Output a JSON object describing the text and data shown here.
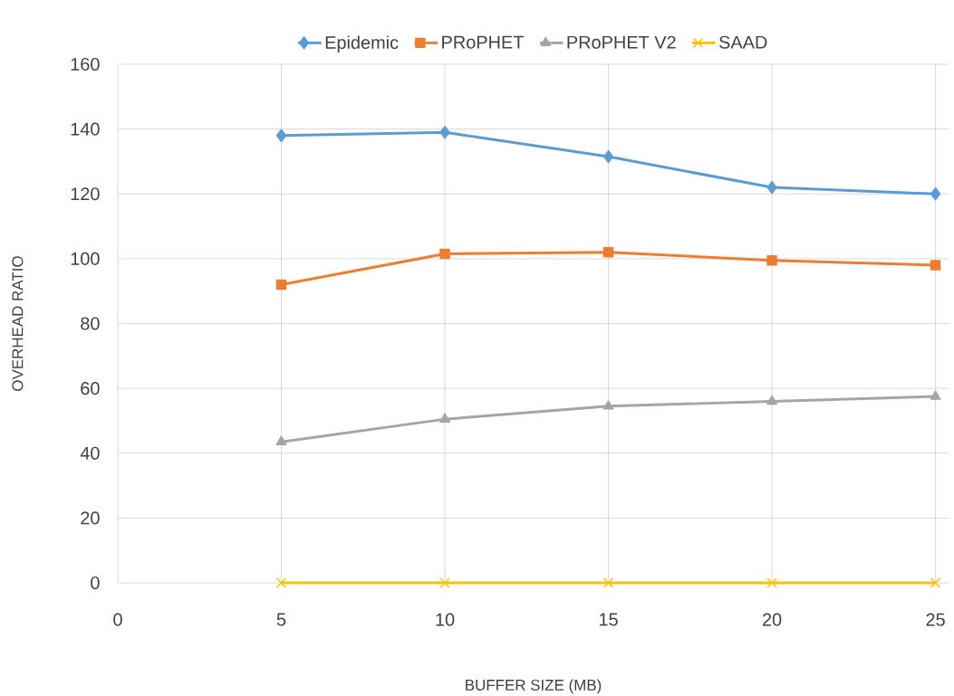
{
  "chart_data": {
    "type": "line",
    "xlabel": "BUFFER SIZE (MB)",
    "ylabel": "OVERHEAD RATIO",
    "x": [
      5,
      10,
      15,
      20,
      25
    ],
    "series": [
      {
        "name": "Epidemic",
        "color": "#5b9bd5",
        "marker": "diamond",
        "values": [
          138,
          139,
          131.5,
          122,
          120
        ]
      },
      {
        "name": "PRoPHET",
        "color": "#ed7d31",
        "marker": "square",
        "values": [
          92,
          101.5,
          102,
          99.5,
          98
        ]
      },
      {
        "name": "PRoPHET V2",
        "color": "#a5a5a5",
        "marker": "triangle",
        "values": [
          43.5,
          50.5,
          54.5,
          56,
          57.5
        ]
      },
      {
        "name": "SAAD",
        "color": "#ffc000",
        "marker": "cross",
        "values": [
          0,
          0,
          0,
          0,
          0
        ]
      }
    ],
    "xlim": [
      0,
      25.4
    ],
    "ylim": [
      0,
      160
    ],
    "xticks": [
      0,
      5,
      10,
      15,
      20,
      25
    ],
    "yticks": [
      0,
      20,
      40,
      60,
      80,
      100,
      120,
      140,
      160
    ],
    "grid": true,
    "legend": "top",
    "line_style": "solid"
  }
}
